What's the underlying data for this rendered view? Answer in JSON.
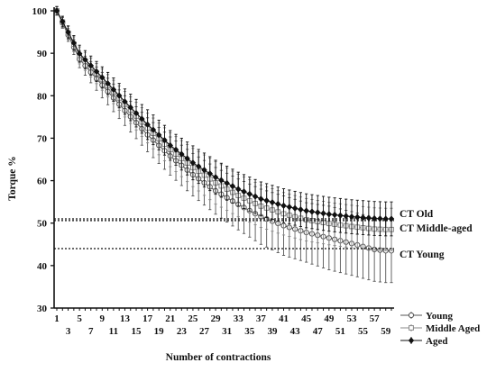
{
  "chart_data": {
    "type": "line",
    "xlabel": "Number of contractions",
    "ylabel": "Torque %",
    "xlim": [
      1,
      60
    ],
    "ylim": [
      30,
      100
    ],
    "y_ticks": [
      30,
      40,
      50,
      60,
      70,
      80,
      90,
      100
    ],
    "x_ticks_upper": [
      1,
      5,
      9,
      13,
      17,
      21,
      25,
      29,
      33,
      37,
      41,
      45,
      49,
      53,
      57
    ],
    "x_ticks_lower": [
      3,
      7,
      11,
      15,
      19,
      23,
      27,
      31,
      35,
      39,
      43,
      47,
      51,
      55,
      59
    ],
    "x": [
      1,
      5,
      9,
      13,
      17,
      21,
      25,
      29,
      33,
      37,
      41,
      45,
      49,
      53,
      57,
      59
    ],
    "series": [
      {
        "name": "Young",
        "marker": "open-circle",
        "values": [
          100,
          88.6,
          82.5,
          76.5,
          70.8,
          65.8,
          61.4,
          57.6,
          54.4,
          51.5,
          49.4,
          47.8,
          46.5,
          45.2,
          43.8,
          43.5
        ],
        "error": [
          1,
          2,
          3,
          3.5,
          4,
          4.5,
          5,
          5.5,
          6,
          6.5,
          7,
          7,
          7.5,
          7.5,
          7.5,
          7.5
        ],
        "color": "#555555"
      },
      {
        "name": "Middle Aged",
        "marker": "open-square",
        "values": [
          100,
          89.5,
          83.8,
          78.0,
          72.4,
          67.3,
          63.1,
          59.5,
          56.5,
          54.0,
          52.2,
          50.8,
          49.9,
          49.2,
          48.6,
          48.5
        ],
        "error": [
          1,
          2,
          2.5,
          3,
          3.5,
          4,
          4.5,
          5,
          5,
          5,
          5,
          5,
          5,
          5,
          5,
          5
        ],
        "color": "#888888"
      },
      {
        "name": "Aged",
        "marker": "filled-diamond",
        "values": [
          100,
          89.9,
          84.3,
          78.6,
          73.2,
          68.3,
          64.2,
          60.8,
          58.0,
          55.7,
          54.1,
          52.9,
          52.1,
          51.5,
          51.1,
          51.0
        ],
        "error": [
          1,
          2,
          2.5,
          3,
          3.5,
          3.5,
          4,
          4,
          4,
          4,
          4,
          4,
          4,
          4,
          4,
          4
        ],
        "color": "#111111"
      }
    ],
    "reference_lines": [
      {
        "label": "CT Old",
        "y": 51,
        "style": "dotted"
      },
      {
        "label": "CT Middle-aged",
        "y": 50.6,
        "style": "dotted"
      },
      {
        "label": "CT Young",
        "y": 44,
        "style": "dotted"
      }
    ],
    "legend": {
      "placement": "bottom-right",
      "items": [
        "Young",
        "Middle Aged",
        "Aged"
      ]
    },
    "grid": false
  }
}
